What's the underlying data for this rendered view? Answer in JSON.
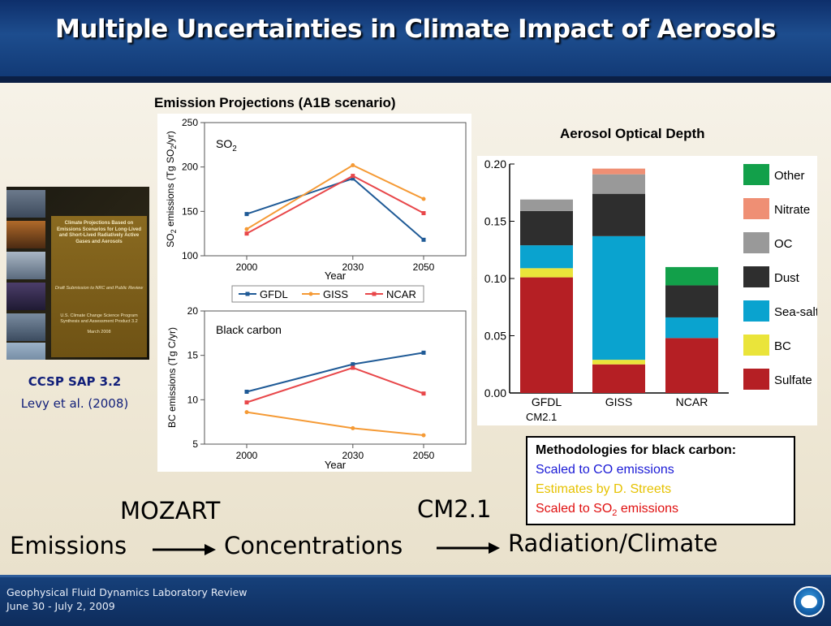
{
  "slide": {
    "title": "Multiple Uncertainties in Climate Impact of Aerosols",
    "footer_line1": "Geophysical Fluid Dynamics Laboratory Review",
    "footer_line2": "June 30 - July 2, 2009"
  },
  "book": {
    "cover_title": "Climate Projections Based on Emissions Scenarios for Long-Lived and Short-Lived Radiatively Active Gases and Aerosols",
    "cover_sub": "Draft Submission to NRC and Public Review",
    "cover_program": "U.S. Climate Change Science Program Synthesis and Assessment Product 3.2",
    "cover_date": "March 2008",
    "caption_line1": "CCSP  SAP  3.2",
    "caption_line2": "Levy et al. (2008)"
  },
  "emission_projections_title": "Emission Projections (A1B scenario)",
  "aod_title": "Aerosol Optical Depth",
  "methodology": {
    "heading": "Methodologies for black carbon:",
    "line1": "Scaled to CO emissions",
    "line2": "Estimates by D. Streets",
    "line3_prefix": "Scaled to SO",
    "line3_sub": "2",
    "line3_suffix": " emissions",
    "colors": {
      "line1": "#1a1ad6",
      "line2": "#e6c200",
      "line3": "#e01010"
    }
  },
  "flow": {
    "emissions": "Emissions",
    "mozart": "MOZART",
    "concentrations": "Concentrations",
    "cm21": "CM2.1",
    "radiation_climate": "Radiation/Climate"
  },
  "chart_data": [
    {
      "type": "line",
      "id": "so2",
      "label_main": "SO",
      "label_sub": "2",
      "x": [
        2000,
        2030,
        2050
      ],
      "xticks": [
        "2000",
        "2030",
        "2050"
      ],
      "xlabel": "Year",
      "ylabel_parts": [
        "SO",
        "2",
        " emissions (Tg SO",
        "2",
        "/yr)"
      ],
      "ylim": [
        100,
        250
      ],
      "yticks": [
        100,
        150,
        200,
        250
      ],
      "series": [
        {
          "name": "GFDL",
          "color": "#1f5a96",
          "marker": "square",
          "values": [
            147,
            187,
            118
          ]
        },
        {
          "name": "GISS",
          "color": "#f59a35",
          "marker": "circle",
          "values": [
            130,
            202,
            164
          ]
        },
        {
          "name": "NCAR",
          "color": "#e8474a",
          "marker": "square",
          "values": [
            125,
            190,
            148
          ]
        }
      ],
      "legend": "bottom"
    },
    {
      "type": "line",
      "id": "bc",
      "label_main": "Black carbon",
      "x": [
        2000,
        2030,
        2050
      ],
      "xticks": [
        "2000",
        "2030",
        "2050"
      ],
      "xlabel": "Year",
      "ylabel": "BC emissions (Tg C/yr)",
      "ylim": [
        5,
        20
      ],
      "yticks": [
        5,
        10,
        15,
        20
      ],
      "series": [
        {
          "name": "GFDL",
          "color": "#1f5a96",
          "marker": "square",
          "values": [
            10.9,
            14.0,
            15.3
          ]
        },
        {
          "name": "GISS",
          "color": "#f59a35",
          "marker": "circle",
          "values": [
            8.6,
            6.8,
            6.0
          ]
        },
        {
          "name": "NCAR",
          "color": "#e8474a",
          "marker": "square",
          "values": [
            9.7,
            13.6,
            10.7
          ]
        }
      ]
    },
    {
      "type": "bar",
      "id": "aod",
      "stacked": true,
      "categories": [
        "GFDL",
        "GISS",
        "NCAR"
      ],
      "ylim": [
        0,
        0.2
      ],
      "yticks": [
        "0.00",
        "0.05",
        "0.10",
        "0.15",
        "0.20"
      ],
      "note": "CM2.1",
      "series": [
        {
          "name": "Sulfate",
          "color": "#b51f24",
          "values": [
            0.101,
            0.025,
            0.048
          ]
        },
        {
          "name": "BC",
          "color": "#eae43a",
          "values": [
            0.008,
            0.004,
            0
          ]
        },
        {
          "name": "Sea-salt",
          "color": "#0aa3cf",
          "values": [
            0.02,
            0.108,
            0.018
          ]
        },
        {
          "name": "Dust",
          "color": "#2e2e2e",
          "values": [
            0.03,
            0.037,
            0.028
          ]
        },
        {
          "name": "OC",
          "color": "#999999",
          "values": [
            0.01,
            0.017,
            0
          ]
        },
        {
          "name": "Nitrate",
          "color": "#ef8f74",
          "values": [
            0,
            0.005,
            0
          ]
        },
        {
          "name": "Other",
          "color": "#12a04a",
          "values": [
            0,
            0,
            0.016
          ]
        }
      ],
      "legend_order": [
        "Other",
        "Nitrate",
        "OC",
        "Dust",
        "Sea-salt",
        "BC",
        "Sulfate"
      ]
    }
  ]
}
